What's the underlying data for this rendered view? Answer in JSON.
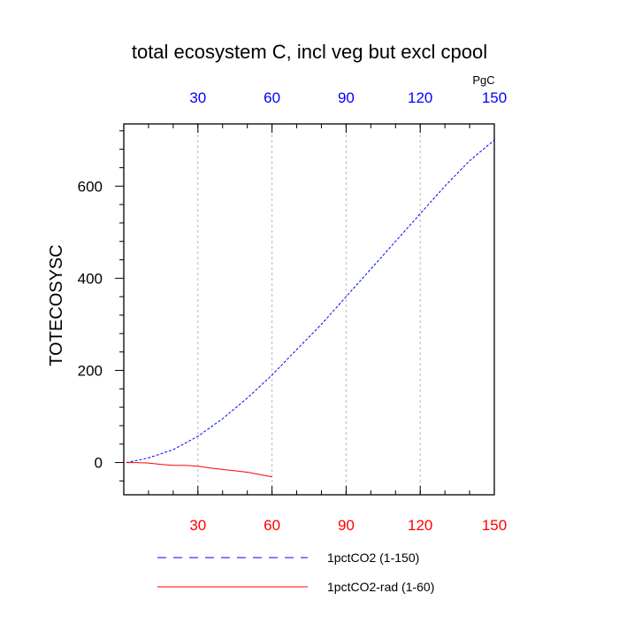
{
  "chart_data": {
    "type": "line",
    "title": "total ecosystem C, incl veg but excl cpool",
    "units_label": "PgC",
    "ylabel": "TOTECOSYSC",
    "xlabel": "",
    "xlim": [
      0,
      150
    ],
    "ylim": [
      -70,
      735
    ],
    "x_ticks": [
      30,
      60,
      90,
      120,
      150
    ],
    "y_ticks": [
      0,
      200,
      400,
      600
    ],
    "grid": "vertical dashed at x ticks",
    "colors": {
      "axis_top_ticks": "#0000ff",
      "axis_bottom_ticks": "#ff0000"
    },
    "series": [
      {
        "name": "1pctCO2 (1-150)",
        "color": "#0000ff",
        "dash": "dashed",
        "x": [
          1,
          10,
          20,
          30,
          40,
          50,
          60,
          70,
          80,
          90,
          100,
          110,
          120,
          130,
          140,
          150
        ],
        "y": [
          0,
          10,
          28,
          57,
          95,
          140,
          190,
          245,
          300,
          360,
          420,
          480,
          540,
          600,
          655,
          700
        ]
      },
      {
        "name": "1pctCO2-rad (1-60)",
        "color": "#ff0000",
        "dash": "solid",
        "x": [
          1,
          5,
          10,
          15,
          20,
          25,
          30,
          35,
          40,
          45,
          50,
          55,
          60
        ],
        "y": [
          0,
          0,
          -1,
          -4,
          -6,
          -6,
          -8,
          -12,
          -15,
          -18,
          -21,
          -26,
          -31
        ]
      }
    ]
  }
}
